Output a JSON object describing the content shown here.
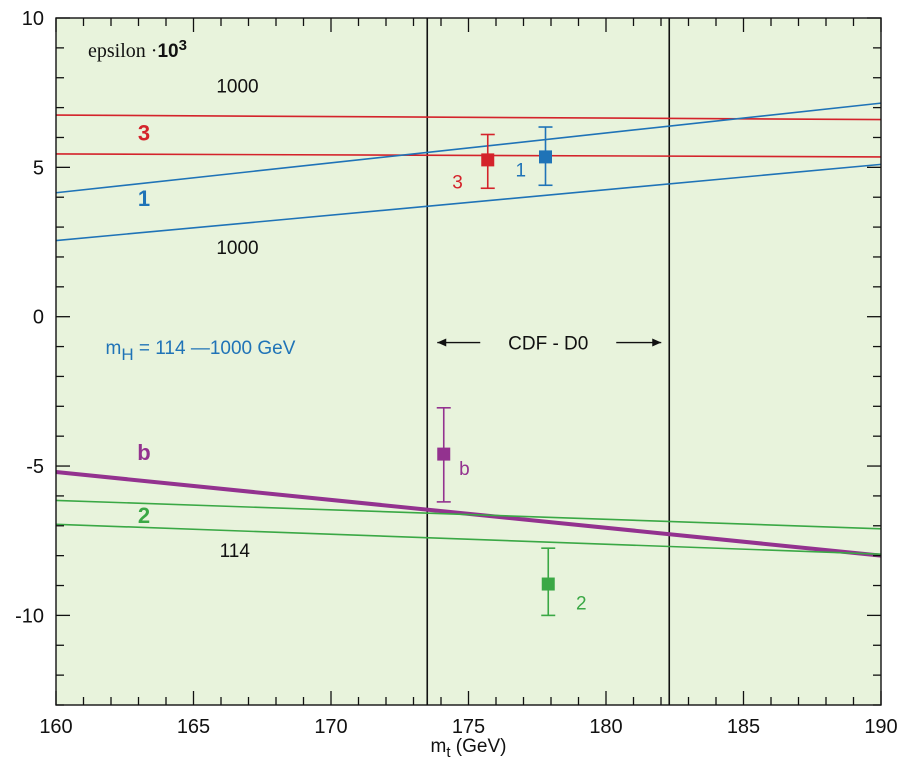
{
  "chart_data": {
    "type": "line",
    "title": "epsilon ·10³",
    "title_parts": {
      "prefix": "epsilon ·",
      "base": "10",
      "exp": "3"
    },
    "xlabel_parts": {
      "main": "m",
      "sub": "t",
      "rest": " (GeV)"
    },
    "xlim": [
      160,
      190
    ],
    "ylim": [
      -13,
      10
    ],
    "x_ticks": [
      160,
      165,
      170,
      175,
      180,
      185,
      190
    ],
    "x_tick_labels": [
      "160",
      "165",
      "170",
      "175",
      "180",
      "185",
      "190"
    ],
    "y_ticks": [
      10,
      5,
      0,
      -5,
      -10
    ],
    "y_tick_labels": [
      "10",
      "5",
      "0",
      "-5",
      "-10"
    ],
    "grid": false,
    "background_color": "#e8f3dc",
    "series": [
      {
        "name": "3",
        "color": "#d4232b",
        "width": 1.6,
        "x": [
          160,
          190
        ],
        "y": [
          6.75,
          6.6
        ]
      },
      {
        "name": "3",
        "color": "#d4232b",
        "width": 1.6,
        "x": [
          160,
          190
        ],
        "y": [
          5.45,
          5.35
        ]
      },
      {
        "name": "1",
        "color": "#1f73b7",
        "width": 1.6,
        "x": [
          160,
          190
        ],
        "y": [
          4.15,
          7.15
        ]
      },
      {
        "name": "1",
        "color": "#1f73b7",
        "width": 1.6,
        "x": [
          160,
          190
        ],
        "y": [
          2.55,
          5.1
        ]
      },
      {
        "name": "b",
        "color": "#93328f",
        "width": 4,
        "x": [
          160,
          190
        ],
        "y": [
          -5.2,
          -8.0
        ]
      },
      {
        "name": "2",
        "color": "#3aa845",
        "width": 1.6,
        "x": [
          160,
          190
        ],
        "y": [
          -6.15,
          -7.1
        ]
      },
      {
        "name": "2",
        "color": "#3aa845",
        "width": 1.6,
        "x": [
          160,
          190
        ],
        "y": [
          -6.95,
          -7.95
        ]
      }
    ],
    "measurements": [
      {
        "name": "3",
        "label": "3",
        "color": "#d4232b",
        "x": 175.7,
        "y": 5.25,
        "yerr_low": 0.95,
        "yerr_high": 0.85,
        "label_dx": -1.1,
        "label_dy": -0.95
      },
      {
        "name": "1",
        "label": "1",
        "color": "#1f73b7",
        "x": 177.8,
        "y": 5.35,
        "yerr_low": 0.95,
        "yerr_high": 1.0,
        "label_dx": -0.9,
        "label_dy": -0.65
      },
      {
        "name": "b",
        "label": "b",
        "color": "#93328f",
        "x": 174.1,
        "y": -4.6,
        "yerr_low": 1.6,
        "yerr_high": 1.55,
        "label_dx": 0.75,
        "label_dy": -0.7
      },
      {
        "name": "2",
        "label": "2",
        "color": "#3aa845",
        "x": 177.9,
        "y": -8.95,
        "yerr_low": 1.05,
        "yerr_high": 1.2,
        "label_dx": 1.2,
        "label_dy": -0.85
      }
    ],
    "vertical_lines": [
      173.5,
      182.3
    ],
    "band_label": "CDF - D0",
    "band_label_y": -1.1,
    "annotations": [
      {
        "id": "lbl-1000-top",
        "text": "1000",
        "x": 166.6,
        "y": 7.5,
        "color": "#111111",
        "bold": false
      },
      {
        "id": "lbl-3",
        "text": "3",
        "x": 163.2,
        "y": 5.9,
        "color": "#d4232b",
        "bold": true
      },
      {
        "id": "lbl-1",
        "text": "1",
        "x": 163.2,
        "y": 3.7,
        "color": "#1f73b7",
        "bold": true
      },
      {
        "id": "lbl-1000-low",
        "text": "1000",
        "x": 166.6,
        "y": 2.1,
        "color": "#111111",
        "bold": false
      },
      {
        "id": "lbl-b",
        "text": "b",
        "x": 163.2,
        "y": -4.8,
        "color": "#93328f",
        "bold": true
      },
      {
        "id": "lbl-2",
        "text": "2",
        "x": 163.2,
        "y": -6.9,
        "color": "#3aa845",
        "bold": true
      },
      {
        "id": "lbl-114",
        "text": "114",
        "x": 166.5,
        "y": -8.05,
        "color": "#111111",
        "bold": false
      }
    ],
    "mh_label": {
      "main": "m",
      "sub": "H",
      "rest": " = 114 —1000 GeV",
      "color": "#1f73b7",
      "x": 161.8,
      "y": -1.25
    }
  }
}
